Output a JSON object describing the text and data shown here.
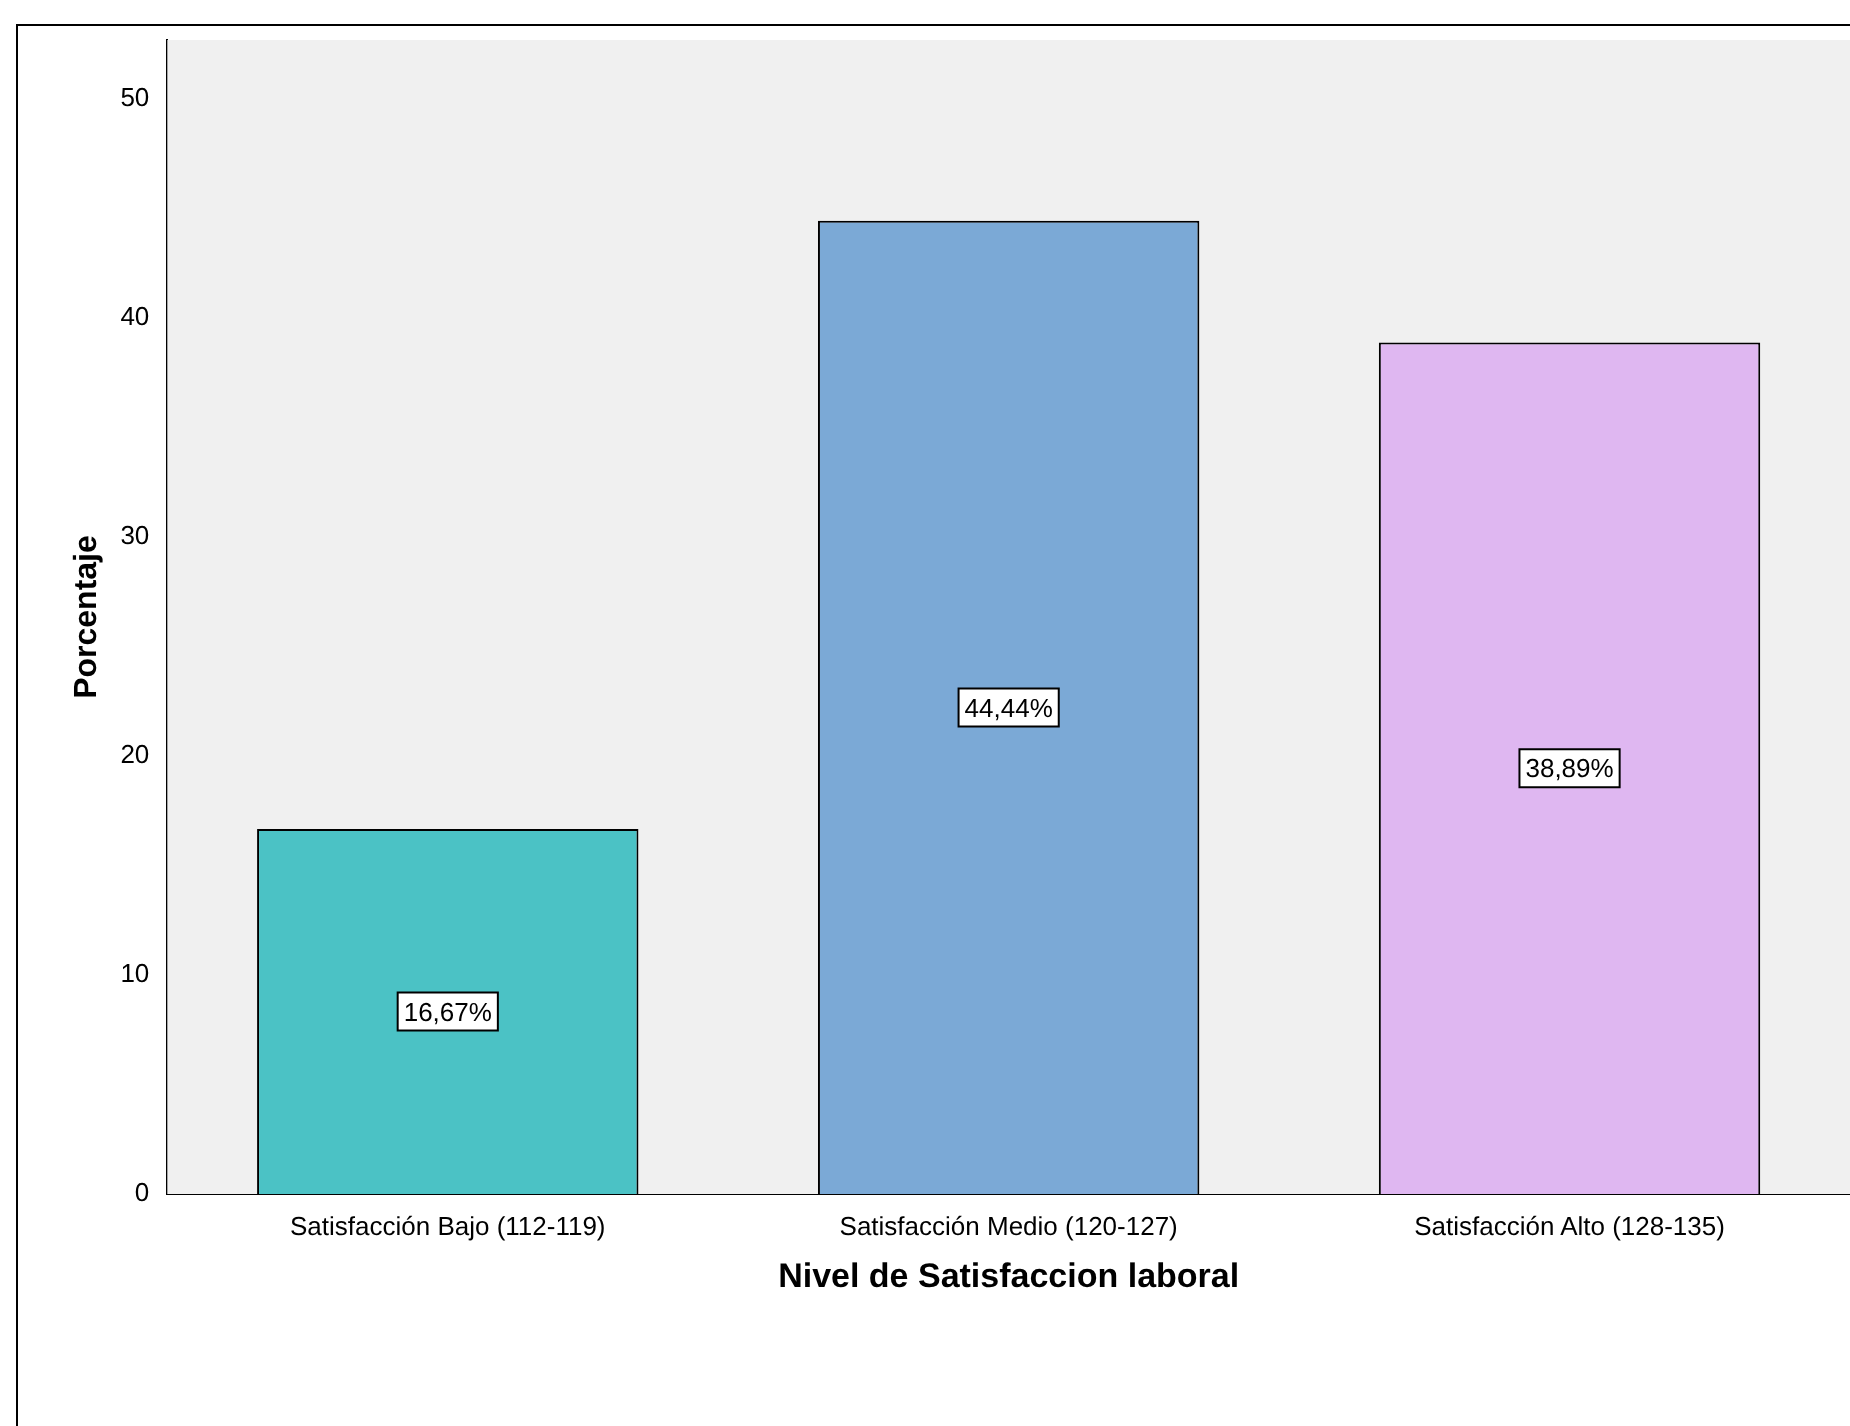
{
  "chart_data": {
    "type": "bar",
    "categories": [
      "Satisfacción Bajo (112-119)",
      "Satisfacción Medio (120-127)",
      "Satisfacción Alto (128-135)"
    ],
    "values": [
      16.67,
      44.44,
      38.89
    ],
    "colors": [
      "#4bc2c5",
      "#7ba9d6",
      "#dfb7f1"
    ],
    "value_labels": [
      "16,67%",
      "44,44%",
      "38,89%"
    ],
    "xlabel": "Nivel de Satisfaccion laboral",
    "ylabel": "Porcentaje",
    "ylim": [
      0,
      52.7
    ],
    "yticks": [
      0,
      10,
      20,
      30,
      40,
      50
    ],
    "grid": false,
    "legend": false
  }
}
